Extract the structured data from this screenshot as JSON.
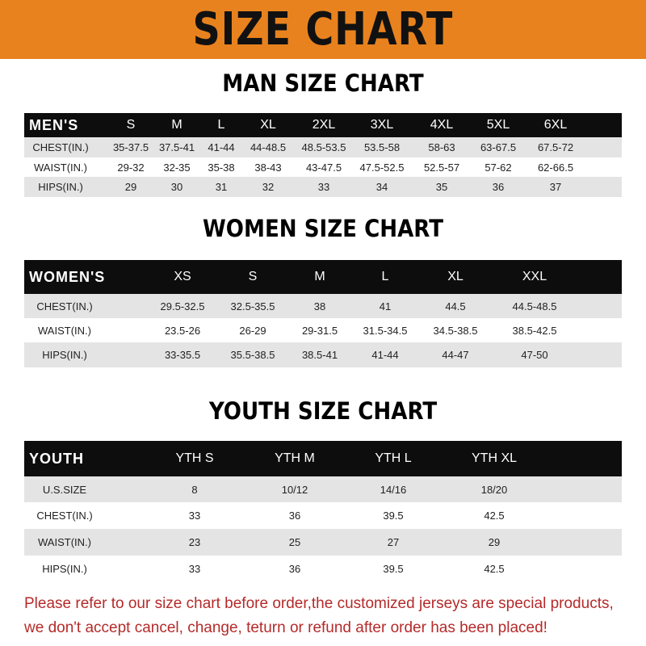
{
  "banner": "SIZE CHART",
  "men": {
    "title": "MAN SIZE CHART",
    "header": [
      "MEN'S",
      "S",
      "M",
      "L",
      "XL",
      "2XL",
      "3XL",
      "4XL",
      "5XL",
      "6XL"
    ],
    "rows": [
      [
        "CHEST(IN.)",
        "35-37.5",
        "37.5-41",
        "41-44",
        "44-48.5",
        "48.5-53.5",
        "53.5-58",
        "58-63",
        "63-67.5",
        "67.5-72"
      ],
      [
        "WAIST(IN.)",
        "29-32",
        "32-35",
        "35-38",
        "38-43",
        "43-47.5",
        "47.5-52.5",
        "52.5-57",
        "57-62",
        "62-66.5"
      ],
      [
        "HIPS(IN.)",
        "29",
        "30",
        "31",
        "32",
        "33",
        "34",
        "35",
        "36",
        "37"
      ]
    ]
  },
  "women": {
    "title": "WOMEN SIZE CHART",
    "header": [
      "WOMEN'S",
      "XS",
      "S",
      "M",
      "L",
      "XL",
      "XXL"
    ],
    "rows": [
      [
        "CHEST(IN.)",
        "29.5-32.5",
        "32.5-35.5",
        "38",
        "41",
        "44.5",
        "44.5-48.5"
      ],
      [
        "WAIST(IN.)",
        "23.5-26",
        "26-29",
        "29-31.5",
        "31.5-34.5",
        "34.5-38.5",
        "38.5-42.5"
      ],
      [
        "HIPS(IN.)",
        "33-35.5",
        "35.5-38.5",
        "38.5-41",
        "41-44",
        "44-47",
        "47-50"
      ]
    ]
  },
  "youth": {
    "title": "YOUTH SIZE CHART",
    "header": [
      "YOUTH",
      "YTH S",
      "YTH M",
      "YTH L",
      "YTH XL"
    ],
    "rows": [
      [
        "U.S.SIZE",
        "8",
        "10/12",
        "14/16",
        "18/20"
      ],
      [
        "CHEST(IN.)",
        "33",
        "36",
        "39.5",
        "42.5"
      ],
      [
        "WAIST(IN.)",
        "23",
        "25",
        "27",
        "29"
      ],
      [
        "HIPS(IN.)",
        "33",
        "36",
        "39.5",
        "42.5"
      ]
    ]
  },
  "note": [
    "Please refer to our size chart before order,the customized jerseys are special products,",
    "we don't accept cancel, change, teturn or refund after order has been placed!"
  ],
  "colors": {
    "banner": "#e8821e",
    "header": "#0d0d0d",
    "note": "#b52a2a"
  }
}
